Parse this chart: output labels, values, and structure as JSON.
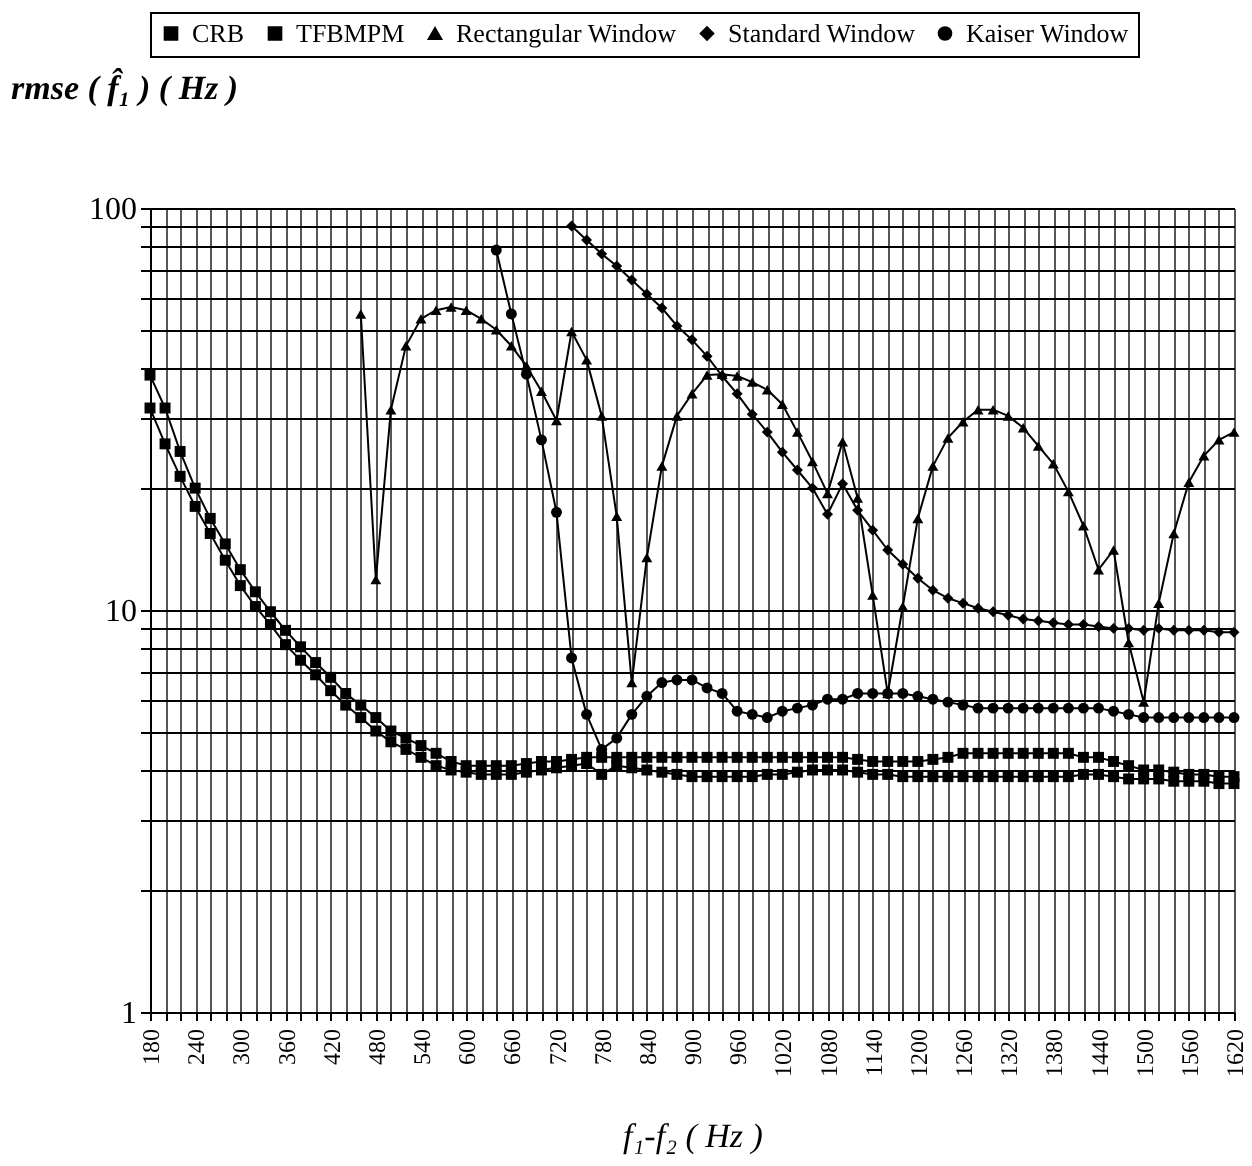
{
  "chart_data": {
    "type": "line",
    "xlabel": "f₁-f₂  ( Hz )",
    "ylabel": "rmse ( f̂₁ )  ( Hz )",
    "x": [
      180,
      200,
      220,
      240,
      260,
      280,
      300,
      320,
      340,
      360,
      380,
      400,
      420,
      440,
      460,
      480,
      500,
      520,
      540,
      560,
      580,
      600,
      620,
      640,
      660,
      680,
      700,
      720,
      740,
      760,
      780,
      800,
      820,
      840,
      860,
      880,
      900,
      920,
      940,
      960,
      980,
      1000,
      1020,
      1040,
      1060,
      1080,
      1100,
      1120,
      1140,
      1160,
      1180,
      1200,
      1220,
      1240,
      1260,
      1280,
      1300,
      1320,
      1340,
      1360,
      1380,
      1400,
      1420,
      1440,
      1460,
      1480,
      1500,
      1520,
      1540,
      1560,
      1580,
      1600,
      1620
    ],
    "series": [
      {
        "name": "CRB",
        "color": "#000000",
        "marker": "square",
        "values": [
          31.8,
          25.9,
          21.5,
          18.1,
          15.5,
          13.3,
          11.5,
          10.2,
          9.2,
          8.2,
          7.5,
          6.9,
          6.3,
          5.8,
          5.4,
          5.0,
          4.7,
          4.5,
          4.3,
          4.1,
          4.0,
          3.95,
          3.9,
          3.9,
          3.9,
          3.95,
          4.0,
          4.05,
          4.1,
          4.15,
          3.9,
          4.1,
          4.05,
          4.0,
          3.95,
          3.9,
          3.85,
          3.85,
          3.85,
          3.85,
          3.85,
          3.9,
          3.9,
          3.95,
          4.0,
          4.0,
          4.0,
          3.95,
          3.9,
          3.9,
          3.85,
          3.85,
          3.85,
          3.85,
          3.85,
          3.85,
          3.85,
          3.85,
          3.85,
          3.85,
          3.85,
          3.85,
          3.9,
          3.9,
          3.85,
          3.8,
          3.8,
          3.8,
          3.75,
          3.75,
          3.75,
          3.7,
          3.7
        ]
      },
      {
        "name": "TFBMPM",
        "color": "#000000",
        "marker": "square",
        "values": [
          38.4,
          31.8,
          24.8,
          20.1,
          16.9,
          14.6,
          12.6,
          11.1,
          9.9,
          8.9,
          8.1,
          7.4,
          6.8,
          6.2,
          5.8,
          5.4,
          5.0,
          4.8,
          4.6,
          4.4,
          4.2,
          4.1,
          4.1,
          4.1,
          4.1,
          4.15,
          4.2,
          4.2,
          4.25,
          4.3,
          4.3,
          4.3,
          4.3,
          4.3,
          4.3,
          4.3,
          4.3,
          4.3,
          4.3,
          4.3,
          4.3,
          4.3,
          4.3,
          4.3,
          4.3,
          4.3,
          4.3,
          4.25,
          4.2,
          4.2,
          4.2,
          4.2,
          4.25,
          4.3,
          4.4,
          4.4,
          4.4,
          4.4,
          4.4,
          4.4,
          4.4,
          4.4,
          4.3,
          4.3,
          4.2,
          4.1,
          4.0,
          4.0,
          3.95,
          3.9,
          3.9,
          3.85,
          3.85
        ]
      },
      {
        "name": "Rectangular Window",
        "color": "#000000",
        "marker": "triangle",
        "values": [
          null,
          null,
          null,
          null,
          null,
          null,
          null,
          null,
          null,
          null,
          null,
          null,
          null,
          null,
          54.5,
          11.9,
          31.5,
          45.4,
          53,
          55.7,
          56.7,
          55.7,
          53,
          49.8,
          45.4,
          40.5,
          35,
          29.6,
          49.3,
          41.9,
          30.4,
          17.1,
          6.6,
          13.5,
          22.8,
          30.4,
          34.5,
          38.4,
          38.6,
          38.2,
          36.9,
          35.3,
          32.5,
          27.7,
          23.4,
          19.5,
          26.2,
          19.0,
          10.9,
          6.2,
          10.2,
          16.9,
          22.8,
          26.8,
          29.4,
          31.5,
          31.5,
          30.4,
          28.4,
          25.6,
          23.1,
          19.7,
          16.2,
          12.6,
          14.1,
          8.3,
          5.9,
          10.4,
          15.5,
          20.8,
          24.2,
          26.5,
          27.7
        ]
      },
      {
        "name": "Standard Window",
        "color": "#000000",
        "marker": "diamond",
        "values": [
          null,
          null,
          null,
          null,
          null,
          null,
          null,
          null,
          null,
          null,
          null,
          null,
          null,
          null,
          null,
          null,
          null,
          null,
          null,
          null,
          null,
          null,
          null,
          null,
          null,
          null,
          null,
          null,
          90.2,
          83.3,
          76.9,
          71.7,
          66.2,
          61.1,
          56.4,
          50.9,
          47,
          42.8,
          38.2,
          34.5,
          30.7,
          27.7,
          24.7,
          22.3,
          20.1,
          17.3,
          20.6,
          17.7,
          15.8,
          14.1,
          13,
          12,
          11.2,
          10.7,
          10.4,
          10.1,
          9.9,
          9.7,
          9.5,
          9.4,
          9.3,
          9.2,
          9.2,
          9.1,
          9.0,
          9.0,
          8.9,
          9.0,
          8.9,
          8.9,
          8.9,
          8.8,
          8.8
        ]
      },
      {
        "name": "Kaiser Window",
        "color": "#000000",
        "marker": "circle",
        "values": [
          null,
          null,
          null,
          null,
          null,
          null,
          null,
          null,
          null,
          null,
          null,
          null,
          null,
          null,
          null,
          null,
          null,
          null,
          null,
          null,
          null,
          null,
          null,
          78.6,
          54.5,
          38.6,
          26.5,
          17.5,
          7.6,
          5.5,
          4.5,
          4.8,
          5.5,
          6.1,
          6.6,
          6.7,
          6.7,
          6.4,
          6.2,
          5.6,
          5.5,
          5.4,
          5.6,
          5.7,
          5.8,
          6.0,
          6.0,
          6.2,
          6.2,
          6.2,
          6.2,
          6.1,
          6.0,
          5.9,
          5.8,
          5.7,
          5.7,
          5.7,
          5.7,
          5.7,
          5.7,
          5.7,
          5.7,
          5.7,
          5.6,
          5.5,
          5.4,
          5.4,
          5.4,
          5.4,
          5.4,
          5.4,
          5.4
        ]
      }
    ],
    "log": true,
    "xlim": [
      180,
      1620
    ],
    "xticks": [
      180,
      {
        "value": 200,
        "label": null
      },
      {
        "value": 220,
        "label": null
      },
      240,
      {
        "value": 260,
        "label": null
      },
      {
        "value": 280,
        "label": null
      },
      300,
      {
        "value": 320,
        "label": null
      },
      {
        "value": 340,
        "label": null
      },
      360,
      {
        "value": 380,
        "label": null
      },
      {
        "value": 400,
        "label": null
      },
      420,
      {
        "value": 440,
        "label": null
      },
      {
        "value": 460,
        "label": null
      },
      480,
      {
        "value": 500,
        "label": null
      },
      {
        "value": 520,
        "label": null
      },
      540,
      {
        "value": 560,
        "label": null
      },
      {
        "value": 580,
        "label": null
      },
      600,
      {
        "value": 620,
        "label": null
      },
      {
        "value": 640,
        "label": null
      },
      660,
      {
        "value": 680,
        "label": null
      },
      {
        "value": 700,
        "label": null
      },
      720,
      {
        "value": 740,
        "label": null
      },
      {
        "value": 760,
        "label": null
      },
      780,
      {
        "value": 800,
        "label": null
      },
      {
        "value": 820,
        "label": null
      },
      840,
      {
        "value": 860,
        "label": null
      },
      {
        "value": 880,
        "label": null
      },
      900,
      {
        "value": 920,
        "label": null
      },
      {
        "value": 940,
        "label": null
      },
      960,
      {
        "value": 980,
        "label": null
      },
      {
        "value": 1000,
        "label": null
      },
      1020,
      {
        "value": 1040,
        "label": null
      },
      {
        "value": 1060,
        "label": null
      },
      1080,
      {
        "value": 1100,
        "label": null
      },
      {
        "value": 1120,
        "label": null
      },
      1140,
      {
        "value": 1160,
        "label": null
      },
      {
        "value": 1180,
        "label": null
      },
      1200,
      {
        "value": 1220,
        "label": null
      },
      {
        "value": 1240,
        "label": null
      },
      1260,
      {
        "value": 1280,
        "label": null
      },
      {
        "value": 1300,
        "label": null
      },
      1320,
      {
        "value": 1340,
        "label": null
      },
      {
        "value": 1360,
        "label": null
      },
      1380,
      {
        "value": 1400,
        "label": null
      },
      {
        "value": 1420,
        "label": null
      },
      1440,
      {
        "value": 1460,
        "label": null
      },
      {
        "value": 1480,
        "label": null
      },
      1500,
      {
        "value": 1520,
        "label": null
      },
      {
        "value": 1540,
        "label": null
      },
      1560,
      {
        "value": 1580,
        "label": null
      },
      {
        "value": 1600,
        "label": null
      },
      1620
    ],
    "ylim": [
      1,
      100
    ],
    "yticks": [
      1,
      {
        "value": 2,
        "label": null
      },
      {
        "value": 3,
        "label": null
      },
      {
        "value": 4,
        "label": null
      },
      {
        "value": 5,
        "label": null
      },
      {
        "value": 6,
        "label": null
      },
      {
        "value": 7,
        "label": null
      },
      {
        "value": 8,
        "label": null
      },
      {
        "value": 9,
        "label": null
      },
      10,
      {
        "value": 20,
        "label": null
      },
      {
        "value": 30,
        "label": null
      },
      {
        "value": 40,
        "label": null
      },
      {
        "value": 50,
        "label": null
      },
      {
        "value": 60,
        "label": null
      },
      {
        "value": 70,
        "label": null
      },
      {
        "value": 80,
        "label": null
      },
      {
        "value": 90,
        "label": null
      },
      100
    ],
    "grid": true,
    "legend": "top",
    "line_style": "solid"
  }
}
